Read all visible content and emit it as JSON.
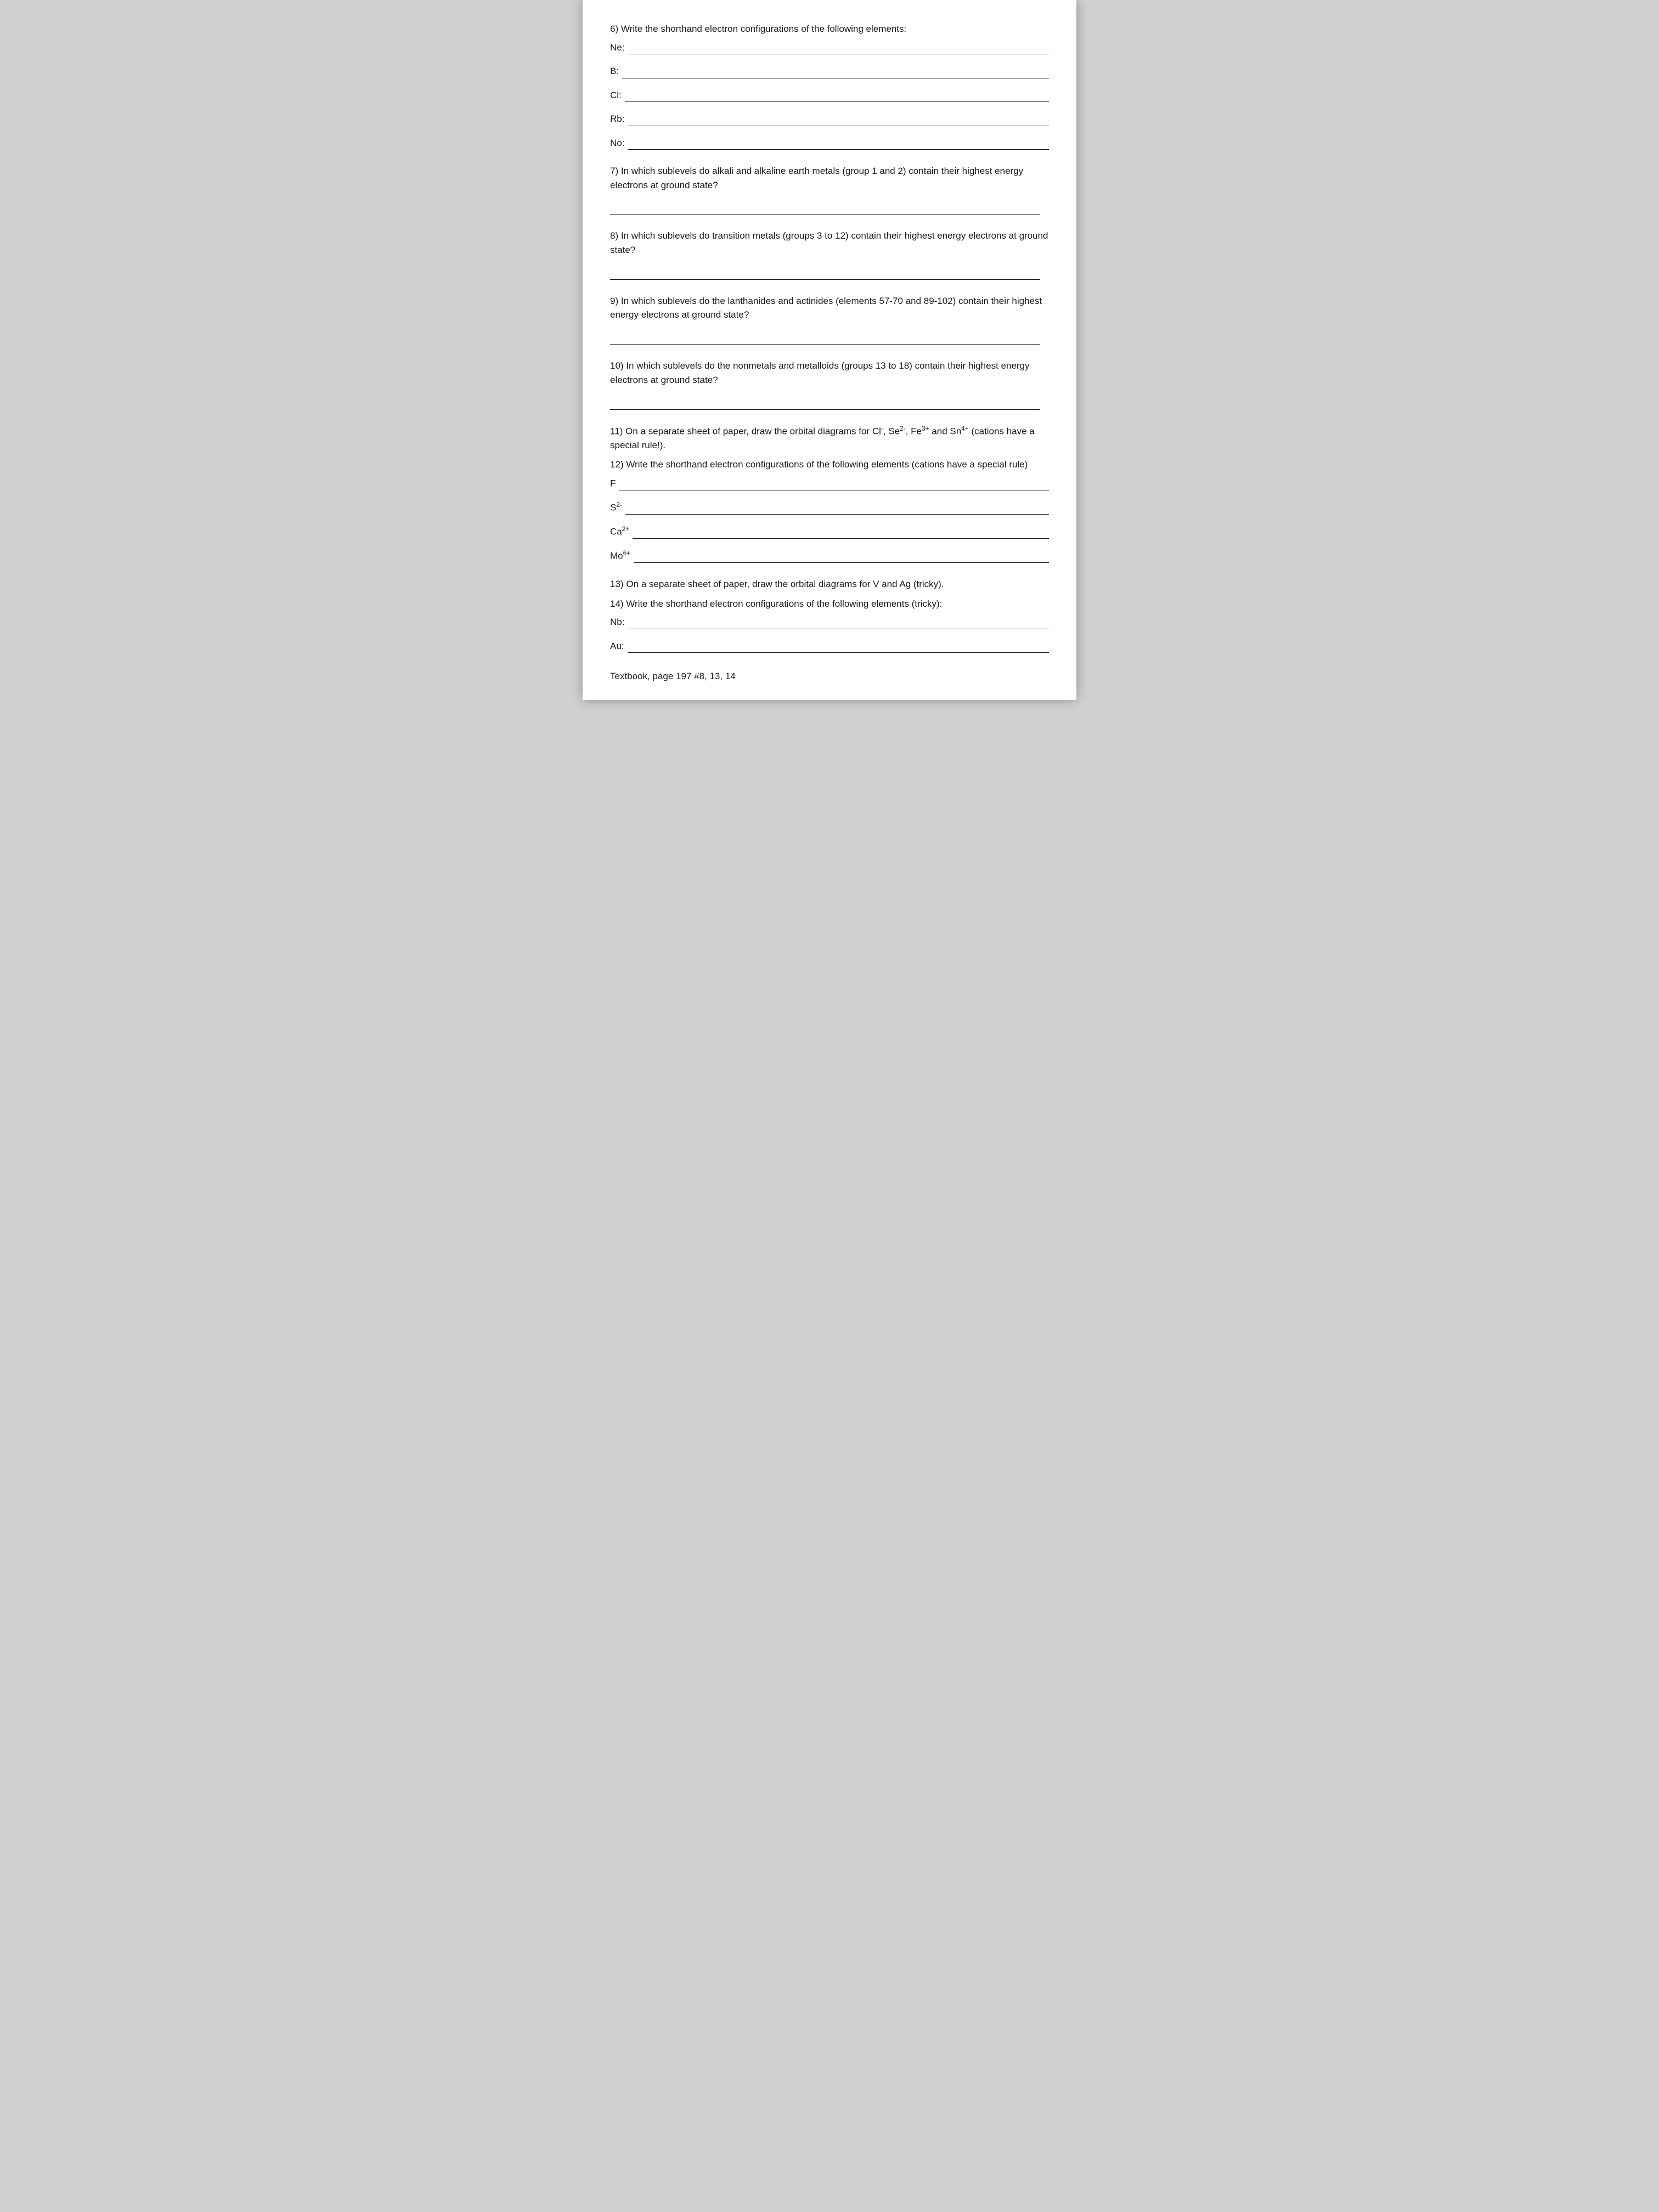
{
  "q6": {
    "prompt": "6) Write the shorthand electron configurations of the following elements:",
    "items": [
      {
        "label": "Ne:"
      },
      {
        "label": "B:"
      },
      {
        "label": "Cl:"
      },
      {
        "label": "Rb:"
      },
      {
        "label": "No:"
      }
    ]
  },
  "q7": {
    "prompt": "7) In which sublevels do alkali and alkaline earth metals (group 1 and 2) contain their highest energy electrons at ground state?"
  },
  "q8": {
    "prompt": "8) In which sublevels do transition metals (groups 3 to 12) contain their highest energy electrons at ground state?"
  },
  "q9": {
    "prompt": "9) In which sublevels do the lanthanides and actinides (elements 57-70 and 89-102) contain their highest energy electrons at ground state?"
  },
  "q10": {
    "prompt": "10) In which sublevels do the nonmetals and metalloids (groups 13 to 18) contain their highest energy energy electrons at ground state?",
    "prompt_fixed": "10) In which sublevels do the nonmetals and metalloids (groups 13 to 18) contain their highest energy electrons at ground state?"
  },
  "q11": {
    "prompt_prefix": "11) On a separate sheet of paper, draw the orbital diagrams for Cl",
    "prompt_mid1": ", Se",
    "prompt_mid2": ", Fe",
    "prompt_mid3": " and Sn",
    "prompt_suffix": " (cations have a special rule!).",
    "sup1": "-",
    "sup2": "2-",
    "sup3": "3+",
    "sup4": "4+"
  },
  "q12": {
    "prompt": "12) Write the shorthand electron configurations of the following elements (cations have a special rule)",
    "items": [
      {
        "label": "F",
        "sup": ""
      },
      {
        "label": "S",
        "sup": "2-"
      },
      {
        "label": "Ca",
        "sup": "2+"
      },
      {
        "label": "Mo",
        "sup": "6+"
      }
    ]
  },
  "q13": {
    "prompt": "13) On a separate sheet of paper, draw the orbital diagrams for V and Ag (tricky)."
  },
  "q14": {
    "prompt": "14) Write the shorthand electron configurations of the following elements (tricky):",
    "items": [
      {
        "label": "Nb:"
      },
      {
        "label": "Au:"
      }
    ]
  },
  "footer": "Textbook, page 197 #8, 13, 14"
}
